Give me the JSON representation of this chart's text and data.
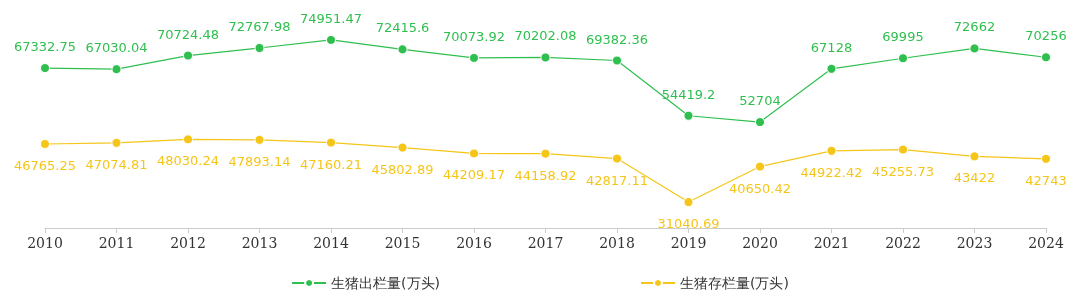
{
  "chart_data": {
    "type": "line",
    "categories": [
      "2010",
      "2011",
      "2012",
      "2013",
      "2014",
      "2015",
      "2016",
      "2017",
      "2018",
      "2019",
      "2020",
      "2021",
      "2022",
      "2023",
      "2024"
    ],
    "series": [
      {
        "name": "生猪出栏量(万头)",
        "color": "#2fbf4f",
        "values": [
          67332.75,
          67030.04,
          70724.48,
          72767.98,
          74951.47,
          72415.6,
          70073.92,
          70202.08,
          69382.36,
          54419.2,
          52704,
          67128,
          69995,
          72662,
          70256
        ]
      },
      {
        "name": "生猪存栏量(万头)",
        "color": "#f5c518",
        "values": [
          46765.25,
          47074.81,
          48030.24,
          47893.14,
          47160.21,
          45802.89,
          44209.17,
          44158.92,
          42817.11,
          31040.69,
          40650.42,
          44922.42,
          45255.73,
          43422,
          42743
        ]
      }
    ],
    "data_labels": true,
    "legend": "bottom",
    "marker": "circle",
    "grid": false
  }
}
